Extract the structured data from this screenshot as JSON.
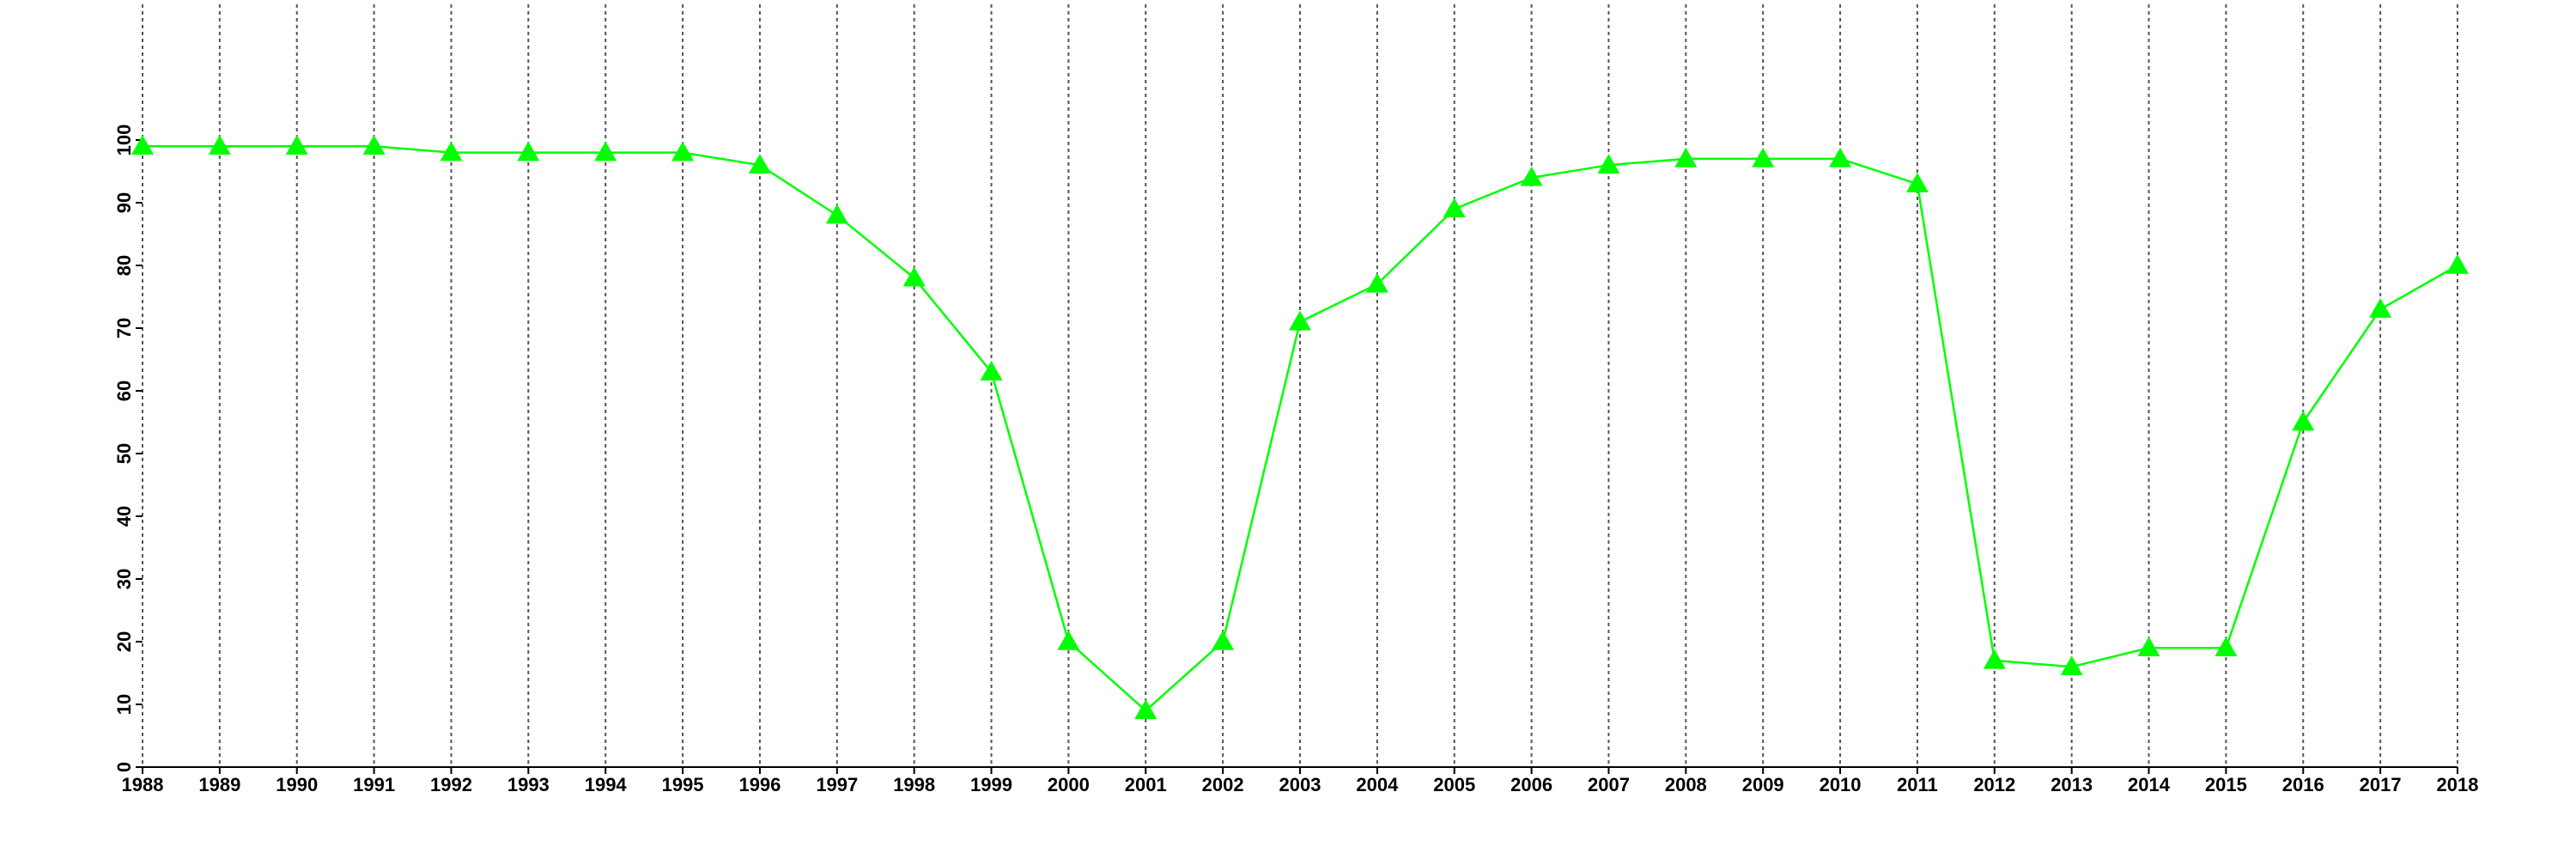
{
  "chart_data": {
    "type": "line",
    "x": [
      1988,
      1989,
      1990,
      1991,
      1992,
      1993,
      1994,
      1995,
      1996,
      1997,
      1998,
      1999,
      2000,
      2001,
      2002,
      2003,
      2004,
      2005,
      2006,
      2007,
      2008,
      2009,
      2010,
      2011,
      2012,
      2013,
      2014,
      2015,
      2016,
      2017,
      2018
    ],
    "series": [
      {
        "color": "#00ff00",
        "marker": "triangle",
        "values": [
          99,
          99,
          99,
          99,
          98,
          98,
          98,
          98,
          96,
          88,
          78,
          63,
          20,
          9,
          20,
          71,
          77,
          89,
          94,
          96,
          97,
          97,
          97,
          93,
          17,
          16,
          19,
          19,
          55,
          73,
          80
        ]
      }
    ],
    "xlim": [
      1988,
      2018
    ],
    "xticks": [
      1988,
      1989,
      1990,
      1991,
      1992,
      1993,
      1994,
      1995,
      1996,
      1997,
      1998,
      1999,
      2000,
      2001,
      2002,
      2003,
      2004,
      2005,
      2006,
      2007,
      2008,
      2009,
      2010,
      2011,
      2012,
      2013,
      2014,
      2015,
      2016,
      2017,
      2018
    ],
    "ylim": [
      0,
      120
    ],
    "yticks": [
      0,
      10,
      20,
      30,
      40,
      50,
      60,
      70,
      80,
      90,
      100
    ],
    "grid": "x"
  }
}
